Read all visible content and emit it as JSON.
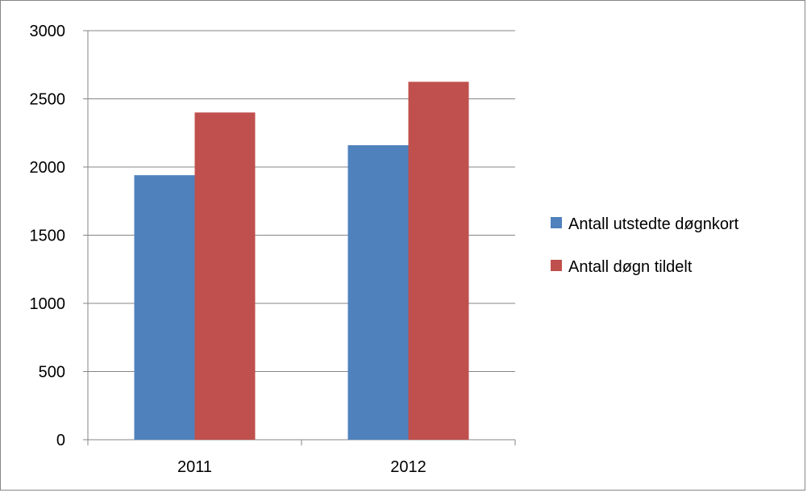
{
  "chart_data": {
    "type": "bar",
    "title": "",
    "xlabel": "",
    "ylabel": "",
    "categories": [
      "2011",
      "2012"
    ],
    "series": [
      {
        "name": "Antall utstedte døgnkort",
        "color": "#4F81BD",
        "values": [
          1940,
          2160
        ]
      },
      {
        "name": "Antall døgn tildelt",
        "color": "#C0504D",
        "values": [
          2400,
          2625
        ]
      }
    ],
    "ylim": [
      0,
      3000
    ],
    "yticks": [
      "0",
      "500",
      "1000",
      "1500",
      "2000",
      "2500",
      "3000"
    ],
    "grid": true,
    "legend": "right"
  }
}
